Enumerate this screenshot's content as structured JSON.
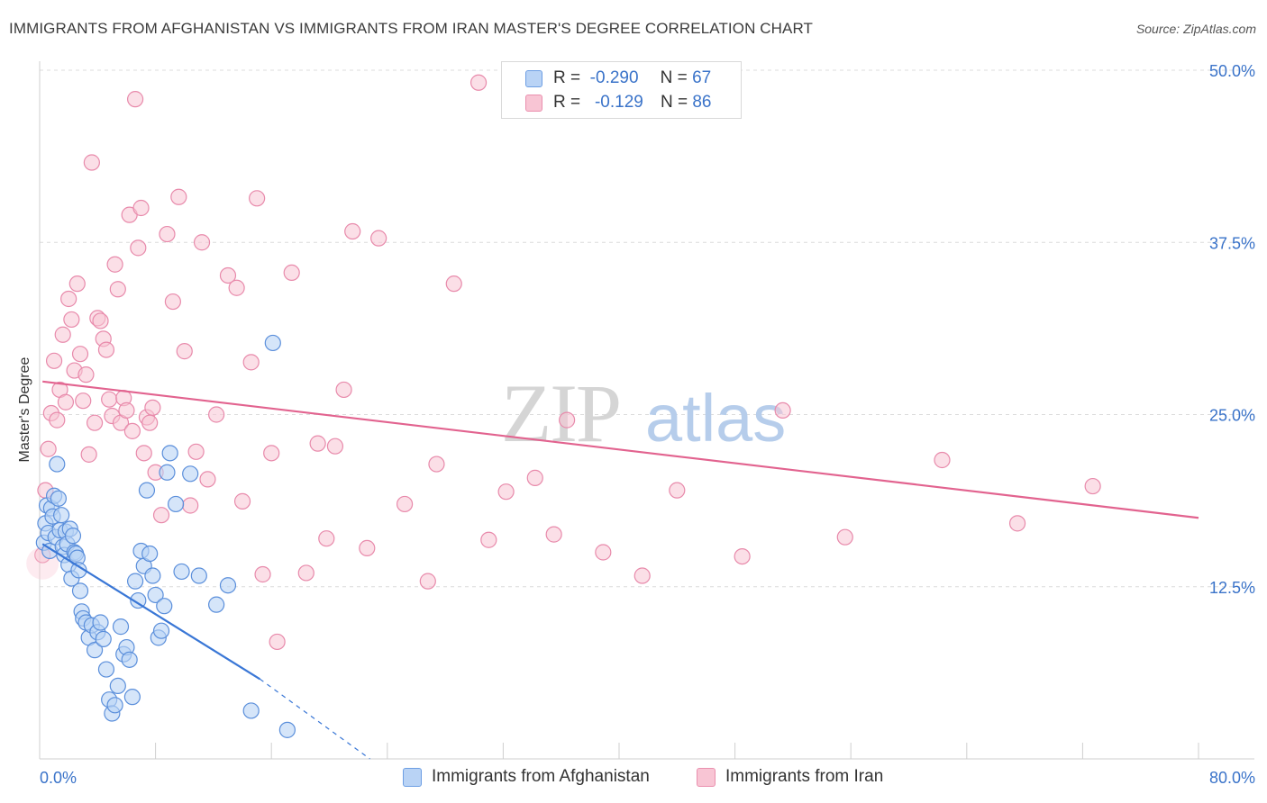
{
  "header": {
    "title": "IMMIGRANTS FROM AFGHANISTAN VS IMMIGRANTS FROM IRAN MASTER'S DEGREE CORRELATION CHART",
    "source": "Source: ZipAtlas.com"
  },
  "colors": {
    "blue": "#3a77d6",
    "blue_fill": "#b9d3f5",
    "pink": "#e2638f",
    "pink_fill": "#f8c5d4",
    "axis_text": "#3a73c9"
  },
  "legend": {
    "rows": [
      {
        "r_label": "R =",
        "r_value": "-0.290",
        "n_label": "N =",
        "n_value": "67"
      },
      {
        "r_label": "R =",
        "r_value": "-0.129",
        "n_label": "N =",
        "n_value": "86"
      }
    ]
  },
  "chart_data": {
    "type": "scatter",
    "title": "IMMIGRANTS FROM AFGHANISTAN VS IMMIGRANTS FROM IRAN MASTER'S DEGREE CORRELATION CHART",
    "xlabel": "",
    "ylabel": "Master's Degree",
    "xlim": [
      0,
      80
    ],
    "ylim": [
      0,
      50
    ],
    "x_tick_labels": [
      "0.0%",
      "80.0%"
    ],
    "y_ticks": [
      12.5,
      25.0,
      37.5,
      50.0
    ],
    "y_tick_labels": [
      "12.5%",
      "25.0%",
      "37.5%",
      "50.0%"
    ],
    "grid": true,
    "watermark": {
      "zip": "ZIP",
      "atlas": "atlas"
    },
    "series": [
      {
        "name": "Immigrants from Afghanistan",
        "color": "#3a77d6",
        "r": -0.29,
        "n": 67,
        "trend": {
          "x0": 0.2,
          "y0": 15.6,
          "x1": 15.2,
          "y1": 5.8,
          "dash_x1": 22.8,
          "dash_y1": 0.0
        },
        "points": [
          [
            0.3,
            15.7
          ],
          [
            0.4,
            17.1
          ],
          [
            0.5,
            18.4
          ],
          [
            0.6,
            16.4
          ],
          [
            0.7,
            15.1
          ],
          [
            0.8,
            18.2
          ],
          [
            0.9,
            17.6
          ],
          [
            1.0,
            19.1
          ],
          [
            1.1,
            16.1
          ],
          [
            1.2,
            21.4
          ],
          [
            1.3,
            18.9
          ],
          [
            1.4,
            16.6
          ],
          [
            1.5,
            17.7
          ],
          [
            1.6,
            15.4
          ],
          [
            1.7,
            14.8
          ],
          [
            1.8,
            16.5
          ],
          [
            1.9,
            15.6
          ],
          [
            2.0,
            14.1
          ],
          [
            2.1,
            16.7
          ],
          [
            2.2,
            13.1
          ],
          [
            2.3,
            16.2
          ],
          [
            2.4,
            15.0
          ],
          [
            2.5,
            14.9
          ],
          [
            2.6,
            14.6
          ],
          [
            2.7,
            13.7
          ],
          [
            2.8,
            12.2
          ],
          [
            2.9,
            10.7
          ],
          [
            3.0,
            10.2
          ],
          [
            3.2,
            9.9
          ],
          [
            3.4,
            8.8
          ],
          [
            3.6,
            9.7
          ],
          [
            3.8,
            7.9
          ],
          [
            4.0,
            9.2
          ],
          [
            4.2,
            9.9
          ],
          [
            4.4,
            8.7
          ],
          [
            4.6,
            6.5
          ],
          [
            4.8,
            4.3
          ],
          [
            5.0,
            3.3
          ],
          [
            5.2,
            3.9
          ],
          [
            5.4,
            5.3
          ],
          [
            5.6,
            9.6
          ],
          [
            5.8,
            7.6
          ],
          [
            6.0,
            8.1
          ],
          [
            6.2,
            7.2
          ],
          [
            6.4,
            4.5
          ],
          [
            6.6,
            12.9
          ],
          [
            6.8,
            11.5
          ],
          [
            7.0,
            15.1
          ],
          [
            7.2,
            14.0
          ],
          [
            7.4,
            19.5
          ],
          [
            7.6,
            14.9
          ],
          [
            7.8,
            13.3
          ],
          [
            8.0,
            11.9
          ],
          [
            8.2,
            8.8
          ],
          [
            8.4,
            9.3
          ],
          [
            8.6,
            11.1
          ],
          [
            8.8,
            20.8
          ],
          [
            9.0,
            22.2
          ],
          [
            9.4,
            18.5
          ],
          [
            9.8,
            13.6
          ],
          [
            10.4,
            20.7
          ],
          [
            11.0,
            13.3
          ],
          [
            12.2,
            11.2
          ],
          [
            13.0,
            12.6
          ],
          [
            14.6,
            3.5
          ],
          [
            16.1,
            30.2
          ],
          [
            17.1,
            2.1
          ]
        ]
      },
      {
        "name": "Immigrants from Iran",
        "color": "#e2638f",
        "r": -0.129,
        "n": 86,
        "trend": {
          "x0": 0.2,
          "y0": 27.4,
          "x1": 80.0,
          "y1": 17.5
        },
        "points": [
          [
            0.2,
            14.8
          ],
          [
            0.4,
            19.5
          ],
          [
            0.6,
            22.5
          ],
          [
            0.8,
            25.1
          ],
          [
            1.0,
            28.9
          ],
          [
            1.2,
            24.6
          ],
          [
            1.4,
            26.8
          ],
          [
            1.6,
            30.8
          ],
          [
            1.8,
            25.9
          ],
          [
            2.0,
            33.4
          ],
          [
            2.2,
            31.9
          ],
          [
            2.4,
            28.2
          ],
          [
            2.6,
            34.5
          ],
          [
            2.8,
            29.4
          ],
          [
            3.0,
            26.0
          ],
          [
            3.2,
            27.9
          ],
          [
            3.4,
            22.1
          ],
          [
            3.6,
            43.3
          ],
          [
            3.8,
            24.4
          ],
          [
            4.0,
            32.0
          ],
          [
            4.2,
            31.8
          ],
          [
            4.4,
            30.5
          ],
          [
            4.6,
            29.7
          ],
          [
            4.8,
            26.1
          ],
          [
            5.0,
            24.9
          ],
          [
            5.2,
            35.9
          ],
          [
            5.4,
            34.1
          ],
          [
            5.6,
            24.4
          ],
          [
            5.8,
            26.2
          ],
          [
            6.0,
            25.3
          ],
          [
            6.2,
            39.5
          ],
          [
            6.4,
            23.8
          ],
          [
            6.6,
            47.9
          ],
          [
            6.8,
            37.1
          ],
          [
            7.0,
            40.0
          ],
          [
            7.2,
            22.2
          ],
          [
            7.4,
            24.8
          ],
          [
            7.6,
            24.4
          ],
          [
            7.8,
            25.5
          ],
          [
            8.0,
            20.8
          ],
          [
            8.4,
            17.7
          ],
          [
            8.8,
            38.1
          ],
          [
            9.2,
            33.2
          ],
          [
            9.6,
            40.8
          ],
          [
            10.0,
            29.6
          ],
          [
            10.4,
            18.4
          ],
          [
            10.8,
            22.3
          ],
          [
            11.2,
            37.5
          ],
          [
            11.6,
            20.3
          ],
          [
            12.2,
            25.0
          ],
          [
            13.0,
            35.1
          ],
          [
            13.6,
            34.2
          ],
          [
            14.0,
            18.7
          ],
          [
            14.6,
            28.8
          ],
          [
            15.0,
            40.7
          ],
          [
            15.4,
            13.4
          ],
          [
            16.0,
            22.2
          ],
          [
            16.4,
            8.5
          ],
          [
            17.4,
            35.3
          ],
          [
            18.4,
            13.5
          ],
          [
            19.2,
            22.9
          ],
          [
            19.8,
            16.0
          ],
          [
            20.4,
            22.7
          ],
          [
            21.0,
            26.8
          ],
          [
            21.6,
            38.3
          ],
          [
            22.6,
            15.3
          ],
          [
            23.4,
            37.8
          ],
          [
            25.2,
            18.5
          ],
          [
            26.8,
            12.9
          ],
          [
            27.4,
            21.4
          ],
          [
            28.6,
            34.5
          ],
          [
            30.3,
            49.1
          ],
          [
            31.0,
            15.9
          ],
          [
            32.2,
            19.4
          ],
          [
            34.2,
            20.4
          ],
          [
            35.5,
            16.3
          ],
          [
            36.4,
            24.6
          ],
          [
            38.9,
            15.0
          ],
          [
            41.6,
            13.3
          ],
          [
            44.0,
            19.5
          ],
          [
            48.5,
            14.7
          ],
          [
            51.3,
            25.3
          ],
          [
            55.6,
            16.1
          ],
          [
            62.3,
            21.7
          ],
          [
            67.5,
            17.1
          ],
          [
            72.7,
            19.8
          ]
        ]
      }
    ]
  }
}
